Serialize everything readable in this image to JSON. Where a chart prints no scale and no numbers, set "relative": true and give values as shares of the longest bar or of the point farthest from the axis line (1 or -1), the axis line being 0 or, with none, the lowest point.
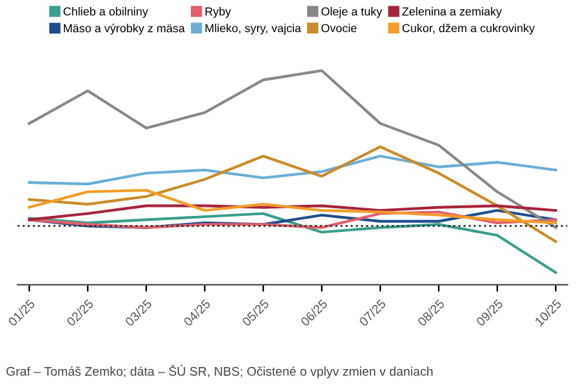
{
  "chart_data": {
    "type": "line",
    "relative": true,
    "legend": "top",
    "marker": "none",
    "line_style": "solid",
    "categories": [
      "01/25",
      "02/25",
      "03/25",
      "04/25",
      "05/25",
      "06/25",
      "07/25",
      "08/25",
      "09/25",
      "10/25"
    ],
    "series": [
      {
        "name": "Chlieb a obilniny",
        "color": "#3a9e8c",
        "values": [
          0.05,
          0.02,
          0.04,
          0.06,
          0.08,
          -0.04,
          -0.01,
          0.01,
          -0.06,
          -0.3
        ]
      },
      {
        "name": "Mäso a výrobky z mäsa",
        "color": "#1f4e8c",
        "values": [
          0.04,
          0.0,
          -0.01,
          0.02,
          0.01,
          0.07,
          0.03,
          0.03,
          0.1,
          0.04
        ]
      },
      {
        "name": "Ryby",
        "color": "#e0606a",
        "values": [
          0.04,
          0.01,
          -0.01,
          0.01,
          0.01,
          -0.01,
          0.08,
          0.09,
          0.02,
          0.04
        ]
      },
      {
        "name": "Mlieko, syry, vajcia",
        "color": "#6aaed6",
        "values": [
          0.28,
          0.27,
          0.34,
          0.36,
          0.31,
          0.35,
          0.45,
          0.38,
          0.41,
          0.36
        ]
      },
      {
        "name": "Oleje a tuky",
        "color": "#888888",
        "values": [
          0.66,
          0.87,
          0.63,
          0.73,
          0.94,
          1.0,
          0.66,
          0.52,
          0.22,
          -0.01
        ]
      },
      {
        "name": "Ovocie",
        "color": "#c98b2a",
        "values": [
          0.17,
          0.14,
          0.19,
          0.3,
          0.45,
          0.32,
          0.51,
          0.34,
          0.13,
          -0.1
        ]
      },
      {
        "name": "Zelenina a zemiaky",
        "color": "#a6243c",
        "values": [
          0.04,
          0.08,
          0.13,
          0.13,
          0.12,
          0.13,
          0.1,
          0.12,
          0.13,
          0.1
        ]
      },
      {
        "name": "Cukor, džem a cukrovinky",
        "color": "#f39c28",
        "values": [
          0.12,
          0.22,
          0.23,
          0.1,
          0.14,
          0.1,
          0.09,
          0.07,
          0.04,
          0.02
        ]
      }
    ],
    "ref_lines": [
      {
        "axis": "y",
        "value": 0,
        "color": "#333333",
        "line_style": "dotted"
      }
    ],
    "annotations": [
      "Graf – Tomáš Zemko; dáta – ŠÚ SR, NBS; Očistené o vplyv zmien v daniach"
    ]
  }
}
